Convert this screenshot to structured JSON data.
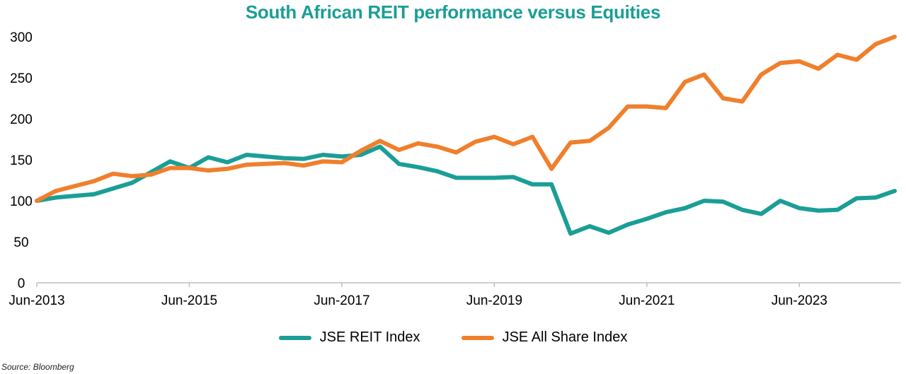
{
  "chart_data": {
    "type": "line",
    "title": "South African REIT performance versus Equities",
    "title_color": "#1a9e96",
    "ylim": [
      0,
      300
    ],
    "yticks": [
      0,
      50,
      100,
      150,
      200,
      250,
      300
    ],
    "xlim": [
      "2013-06",
      "2024-10"
    ],
    "xtick_labels": [
      "Jun-2013",
      "Jun-2015",
      "Jun-2017",
      "Jun-2019",
      "Jun-2021",
      "Jun-2023"
    ],
    "grid": false,
    "legend_placement": "bottom",
    "x": [
      "2013-06",
      "2013-09",
      "2013-12",
      "2014-03",
      "2014-06",
      "2014-09",
      "2014-12",
      "2015-03",
      "2015-06",
      "2015-09",
      "2015-12",
      "2016-03",
      "2016-06",
      "2016-09",
      "2016-12",
      "2017-03",
      "2017-06",
      "2017-09",
      "2017-12",
      "2018-03",
      "2018-06",
      "2018-09",
      "2018-12",
      "2019-03",
      "2019-06",
      "2019-09",
      "2019-12",
      "2020-03",
      "2020-06",
      "2020-09",
      "2020-12",
      "2021-03",
      "2021-06",
      "2021-09",
      "2021-12",
      "2022-03",
      "2022-06",
      "2022-09",
      "2022-12",
      "2023-03",
      "2023-06",
      "2023-09",
      "2023-12",
      "2024-03",
      "2024-06",
      "2024-09"
    ],
    "series": [
      {
        "name": "JSE REIT Index",
        "color": "#1a9e96",
        "values": [
          100,
          104,
          106,
          108,
          115,
          122,
          135,
          148,
          140,
          153,
          147,
          156,
          154,
          152,
          151,
          156,
          154,
          156,
          166,
          145,
          141,
          136,
          128,
          128,
          128,
          129,
          120,
          120,
          60,
          69,
          61,
          71,
          78,
          86,
          91,
          100,
          99,
          89,
          84,
          100,
          91,
          88,
          89,
          103,
          104,
          112
        ]
      },
      {
        "name": "JSE All Share Index",
        "color": "#f07f2c",
        "values": [
          100,
          112,
          118,
          124,
          133,
          130,
          132,
          140,
          140,
          137,
          139,
          144,
          145,
          146,
          143,
          148,
          147,
          161,
          173,
          162,
          170,
          166,
          159,
          172,
          178,
          169,
          178,
          139,
          171,
          173,
          189,
          215,
          215,
          213,
          245,
          254,
          225,
          221,
          254,
          268,
          270,
          261,
          278,
          272,
          291,
          300
        ]
      }
    ]
  },
  "source_note": "Source: Bloomberg"
}
